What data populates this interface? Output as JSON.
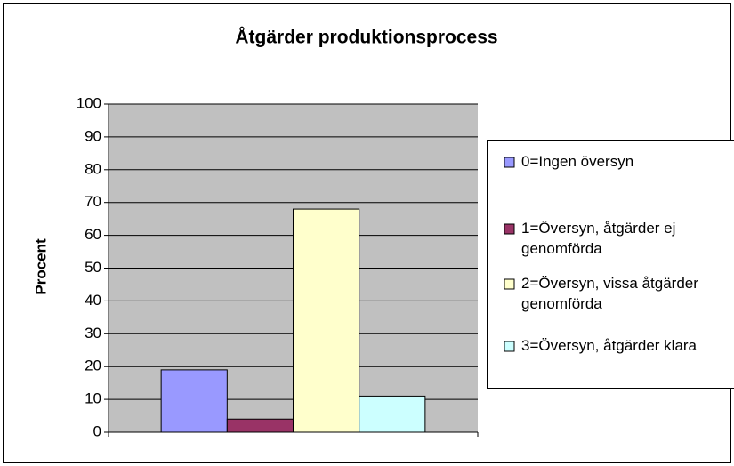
{
  "chart_data": {
    "type": "bar",
    "title": "Åtgärder produktionsprocess",
    "y_label": "Procent",
    "categories": [
      null
    ],
    "series": [
      {
        "name": "0=Ingen översyn",
        "color": "#9999ff",
        "values": [
          19
        ]
      },
      {
        "name": "1=Översyn, åtgärder ej genomförda",
        "color": "#993366",
        "values": [
          4
        ]
      },
      {
        "name": "2=Översyn, vissa åtgärder genomförda",
        "color": "#ffffcc",
        "values": [
          68
        ]
      },
      {
        "name": "3=Översyn, åtgärder klara",
        "color": "#ccffff",
        "values": [
          11
        ]
      }
    ],
    "ylim": [
      0,
      100
    ],
    "yticks": [
      0,
      10,
      20,
      30,
      40,
      50,
      60,
      70,
      80,
      90,
      100
    ],
    "grid": true,
    "legend": "right"
  }
}
